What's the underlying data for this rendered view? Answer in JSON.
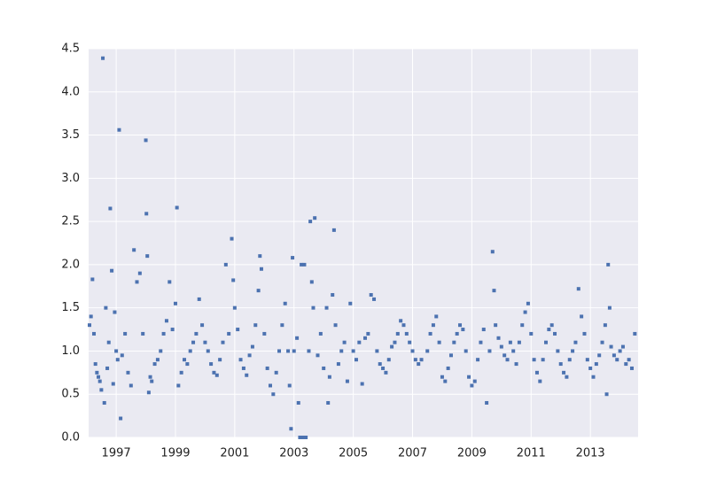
{
  "chart_data": {
    "type": "scatter",
    "x": [
      1996.1,
      1996.15,
      1996.2,
      1996.25,
      1996.3,
      1996.35,
      1996.4,
      1996.45,
      1996.5,
      1996.55,
      1996.6,
      1996.65,
      1996.7,
      1996.75,
      1996.8,
      1996.85,
      1996.9,
      1996.95,
      1997.0,
      1997.05,
      1997.1,
      1997.15,
      1997.2,
      1997.3,
      1997.4,
      1997.5,
      1997.6,
      1997.7,
      1997.8,
      1997.9,
      1998.0,
      1998.02,
      1998.05,
      1998.1,
      1998.15,
      1998.2,
      1998.3,
      1998.4,
      1998.5,
      1998.6,
      1998.7,
      1998.8,
      1998.9,
      1999.0,
      1999.05,
      1999.1,
      1999.2,
      1999.3,
      1999.4,
      1999.5,
      1999.6,
      1999.7,
      1999.8,
      1999.9,
      2000.0,
      2000.1,
      2000.2,
      2000.3,
      2000.4,
      2000.5,
      2000.6,
      2000.7,
      2000.8,
      2000.9,
      2000.95,
      2001.0,
      2001.1,
      2001.2,
      2001.3,
      2001.4,
      2001.5,
      2001.6,
      2001.7,
      2001.8,
      2001.85,
      2001.9,
      2002.0,
      2002.1,
      2002.2,
      2002.3,
      2002.4,
      2002.5,
      2002.6,
      2002.7,
      2002.8,
      2002.85,
      2002.9,
      2002.95,
      2003.0,
      2003.1,
      2003.15,
      2003.2,
      2003.25,
      2003.3,
      2003.35,
      2003.4,
      2003.5,
      2003.55,
      2003.6,
      2003.65,
      2003.7,
      2003.8,
      2003.9,
      2004.0,
      2004.1,
      2004.15,
      2004.2,
      2004.3,
      2004.35,
      2004.4,
      2004.5,
      2004.6,
      2004.7,
      2004.8,
      2004.9,
      2005.0,
      2005.1,
      2005.2,
      2005.3,
      2005.4,
      2005.5,
      2005.6,
      2005.7,
      2005.8,
      2005.9,
      2006.0,
      2006.1,
      2006.2,
      2006.3,
      2006.4,
      2006.5,
      2006.6,
      2006.7,
      2006.8,
      2006.9,
      2007.0,
      2007.1,
      2007.2,
      2007.3,
      2007.5,
      2007.6,
      2007.7,
      2007.8,
      2007.9,
      2008.0,
      2008.1,
      2008.2,
      2008.3,
      2008.4,
      2008.5,
      2008.6,
      2008.7,
      2008.8,
      2008.9,
      2009.0,
      2009.1,
      2009.2,
      2009.3,
      2009.4,
      2009.5,
      2009.6,
      2009.7,
      2009.75,
      2009.8,
      2009.9,
      2010.0,
      2010.1,
      2010.2,
      2010.3,
      2010.4,
      2010.5,
      2010.6,
      2010.7,
      2010.8,
      2010.9,
      2011.0,
      2011.1,
      2011.2,
      2011.3,
      2011.4,
      2011.5,
      2011.6,
      2011.7,
      2011.8,
      2011.9,
      2012.0,
      2012.1,
      2012.2,
      2012.3,
      2012.4,
      2012.5,
      2012.6,
      2012.7,
      2012.8,
      2012.9,
      2013.0,
      2013.1,
      2013.2,
      2013.3,
      2013.4,
      2013.5,
      2013.55,
      2013.6,
      2013.65,
      2013.7,
      2013.8,
      2013.9,
      2014.0,
      2014.1,
      2014.2,
      2014.3,
      2014.4,
      2014.5
    ],
    "series": [
      {
        "color": "#4c72b0",
        "values": [
          1.3,
          1.4,
          1.83,
          1.2,
          0.85,
          0.75,
          0.7,
          0.65,
          0.55,
          4.39,
          0.4,
          1.5,
          0.8,
          1.1,
          2.65,
          1.93,
          0.62,
          1.45,
          1.0,
          0.9,
          3.56,
          0.22,
          0.95,
          1.2,
          0.75,
          0.6,
          2.17,
          1.8,
          1.9,
          1.2,
          3.44,
          2.59,
          2.1,
          0.52,
          0.7,
          0.65,
          0.85,
          0.9,
          1.0,
          1.2,
          1.35,
          1.8,
          1.25,
          1.55,
          2.66,
          0.6,
          0.75,
          0.9,
          0.85,
          1.0,
          1.1,
          1.2,
          1.6,
          1.3,
          1.1,
          1.0,
          0.85,
          0.75,
          0.72,
          0.9,
          1.1,
          2.0,
          1.2,
          2.3,
          1.82,
          1.5,
          1.25,
          0.9,
          0.8,
          0.72,
          0.95,
          1.05,
          1.3,
          1.7,
          2.1,
          1.95,
          1.2,
          0.8,
          0.6,
          0.5,
          0.75,
          1.0,
          1.3,
          1.55,
          1.0,
          0.6,
          0.1,
          2.08,
          1.0,
          1.15,
          0.4,
          0.0,
          2.0,
          0.0,
          2.0,
          0.0,
          1.0,
          2.5,
          1.8,
          1.5,
          2.54,
          0.95,
          1.2,
          0.8,
          1.5,
          0.4,
          0.7,
          1.65,
          2.4,
          1.3,
          0.85,
          1.0,
          1.1,
          0.65,
          1.55,
          1.0,
          0.9,
          1.1,
          0.62,
          1.15,
          1.2,
          1.65,
          1.6,
          1.0,
          0.85,
          0.8,
          0.75,
          0.9,
          1.05,
          1.1,
          1.2,
          1.35,
          1.3,
          1.2,
          1.1,
          1.0,
          0.9,
          0.85,
          0.9,
          1.0,
          1.2,
          1.3,
          1.4,
          1.1,
          0.7,
          0.65,
          0.8,
          0.95,
          1.1,
          1.2,
          1.3,
          1.25,
          1.0,
          0.7,
          0.6,
          0.65,
          0.9,
          1.1,
          1.25,
          0.4,
          1.0,
          2.15,
          1.7,
          1.3,
          1.15,
          1.05,
          0.95,
          0.9,
          1.1,
          1.0,
          0.85,
          1.1,
          1.3,
          1.45,
          1.55,
          1.2,
          0.9,
          0.75,
          0.65,
          0.9,
          1.1,
          1.25,
          1.3,
          1.2,
          1.0,
          0.85,
          0.75,
          0.7,
          0.9,
          1.0,
          1.1,
          1.72,
          1.4,
          1.2,
          0.9,
          0.8,
          0.7,
          0.85,
          0.95,
          1.1,
          1.3,
          0.5,
          2.0,
          1.5,
          1.05,
          0.95,
          0.9,
          1.0,
          1.05,
          0.85,
          0.9,
          0.8,
          1.2
        ]
      }
    ],
    "xlim": [
      1996.07,
      2014.61
    ],
    "xticks": [
      1997,
      1999,
      2001,
      2003,
      2005,
      2007,
      2009,
      2011,
      2013
    ],
    "ylim": [
      0,
      4.5
    ],
    "yticks": [
      {
        "value": 0,
        "label": "0.0"
      },
      0.5,
      {
        "value": 1,
        "label": "1.0"
      },
      1.5,
      {
        "value": 2,
        "label": "2.0"
      },
      2.5,
      {
        "value": 3,
        "label": "3.0"
      },
      3.5,
      {
        "value": 4,
        "label": "4.0"
      },
      4.5
    ],
    "grid": true
  }
}
